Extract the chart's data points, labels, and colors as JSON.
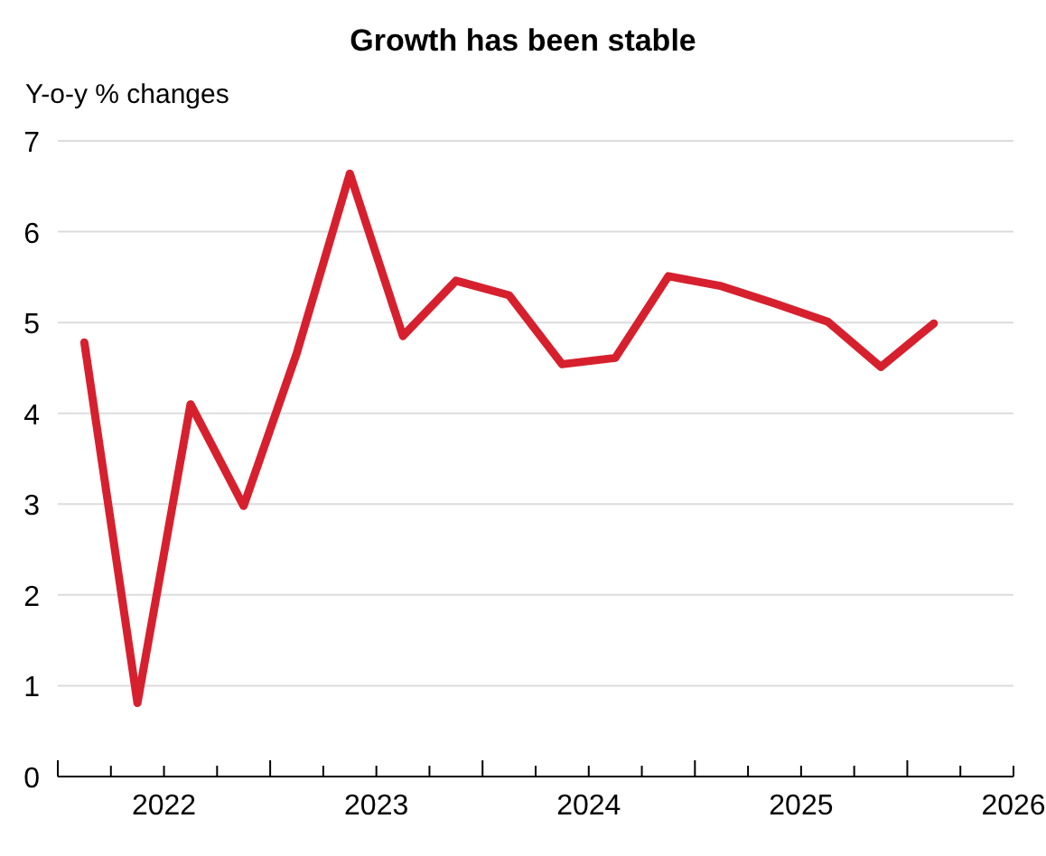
{
  "chart_data": {
    "type": "line",
    "title": "Growth has been stable",
    "ylabel": "Y-o-y % changes",
    "x": [
      2021.625,
      2021.875,
      2022.125,
      2022.375,
      2022.625,
      2022.875,
      2023.125,
      2023.375,
      2023.625,
      2023.875,
      2024.125,
      2024.375,
      2024.625,
      2024.875,
      2025.125,
      2025.375,
      2025.625
    ],
    "series": [
      {
        "color": "#d7202e",
        "values": [
          4.78,
          0.81,
          4.1,
          2.98,
          4.66,
          6.64,
          4.85,
          5.46,
          5.3,
          4.54,
          4.61,
          5.51,
          5.4,
          5.21,
          5.01,
          4.51,
          4.99
        ]
      }
    ],
    "xlim": [
      2021.5,
      2026
    ],
    "xticks": [
      {
        "value": 2021.5,
        "label": null
      },
      {
        "value": 2021.75,
        "label": null
      },
      {
        "value": 2022,
        "label": "2022"
      },
      {
        "value": 2022.25,
        "label": null
      },
      {
        "value": 2022.5,
        "label": null
      },
      {
        "value": 2022.75,
        "label": null
      },
      {
        "value": 2023,
        "label": "2023"
      },
      {
        "value": 2023.25,
        "label": null
      },
      {
        "value": 2023.5,
        "label": null
      },
      {
        "value": 2023.75,
        "label": null
      },
      {
        "value": 2024,
        "label": "2024"
      },
      {
        "value": 2024.25,
        "label": null
      },
      {
        "value": 2024.5,
        "label": null
      },
      {
        "value": 2024.75,
        "label": null
      },
      {
        "value": 2025,
        "label": "2025"
      },
      {
        "value": 2025.25,
        "label": null
      },
      {
        "value": 2025.5,
        "label": null
      },
      {
        "value": 2025.75,
        "label": null
      },
      {
        "value": 2026,
        "label": "2026"
      }
    ],
    "ylim": [
      0,
      7
    ],
    "yticks": [
      0,
      1,
      2,
      3,
      4,
      5,
      6,
      7
    ],
    "grid": "y",
    "marker": "none",
    "line_style": "solid"
  }
}
